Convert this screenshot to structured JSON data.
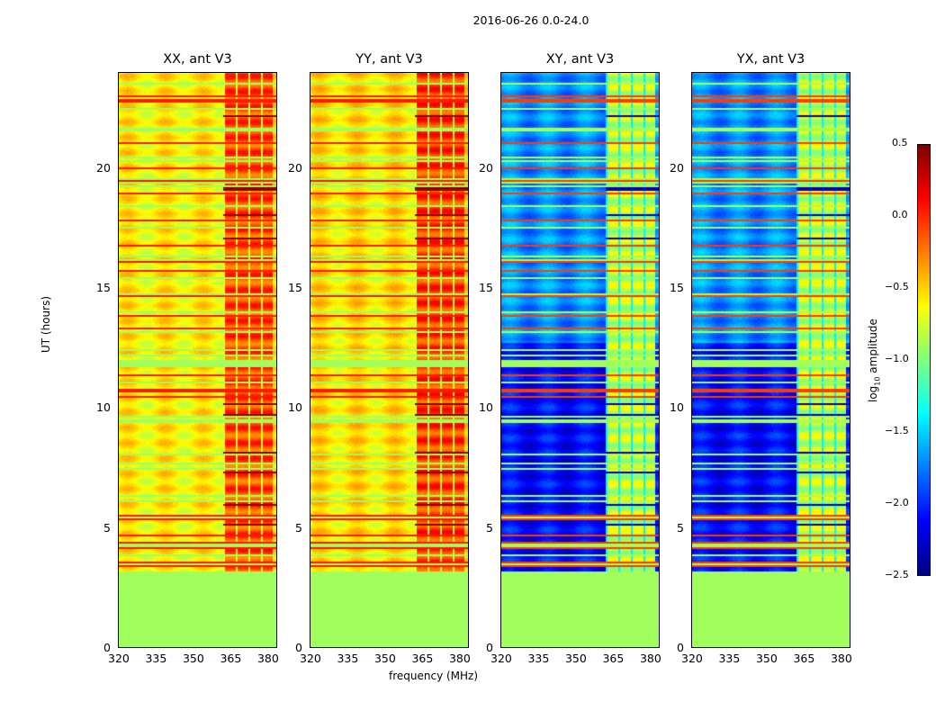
{
  "suptitle": "2016-06-26 0.0-24.0",
  "xlabel": "frequency (MHz)",
  "ylabel": "UT (hours)",
  "colorbar": {
    "label_prefix": "log",
    "label_sub": "10",
    "label_suffix": " amplitude",
    "ticks": [
      "0.5",
      "0.0",
      "−0.5",
      "−1.0",
      "−1.5",
      "−2.0",
      "−2.5"
    ],
    "range": [
      -2.5,
      0.5
    ],
    "colormap": "jet"
  },
  "chart_data": {
    "type": "heatmap",
    "title": "2016-06-26 0.0-24.0",
    "xlabel": "frequency (MHz)",
    "ylabel": "UT (hours)",
    "xlim": [
      320,
      384
    ],
    "ylim": [
      0,
      24
    ],
    "xticks": [
      "320",
      "335",
      "350",
      "365",
      "380"
    ],
    "yticks": [
      "0",
      "5",
      "10",
      "15",
      "20"
    ],
    "color_range": [
      -2.5,
      0.5
    ],
    "panels": [
      {
        "title": "XX, ant V3",
        "base_level": -0.6,
        "band_mhz": [
          362,
          382
        ],
        "band_level": -0.1,
        "data_start_hour": 3.2,
        "fill_level": -0.9
      },
      {
        "title": "YY, ant V3",
        "base_level": -0.55,
        "band_mhz": [
          362,
          382
        ],
        "band_level": -0.05,
        "data_start_hour": 3.2,
        "fill_level": -0.9
      },
      {
        "title": "XY, ant V3",
        "base_level": -1.7,
        "band_mhz": [
          362,
          382
        ],
        "band_level": -0.8,
        "data_start_hour": 3.2,
        "fill_level": -0.9
      },
      {
        "title": "YX, ant V3",
        "base_level": -1.7,
        "band_mhz": [
          362,
          382
        ],
        "band_level": -0.8,
        "data_start_hour": 3.2,
        "fill_level": -0.9
      }
    ]
  }
}
